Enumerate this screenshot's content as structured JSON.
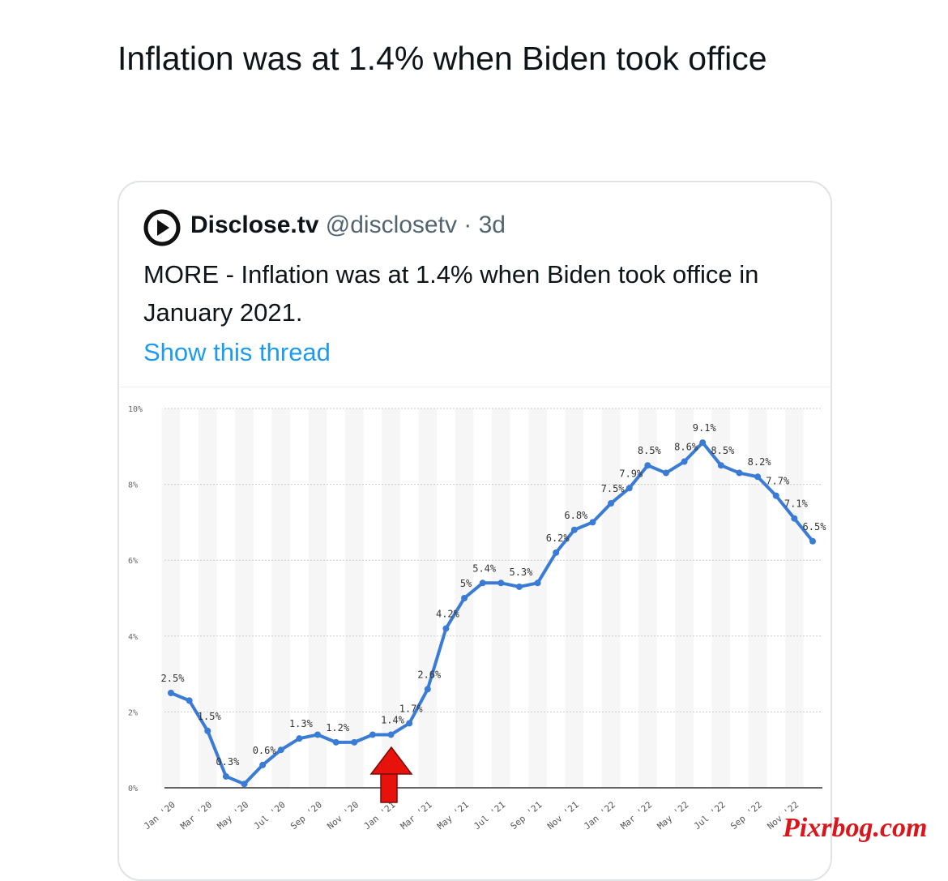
{
  "tweet": {
    "text": "Inflation was at 1.4% when Biden took office"
  },
  "quoted": {
    "name": "Disclose.tv",
    "handle": "@disclosetv",
    "time": "· 3d",
    "text": "MORE - Inflation was at 1.4% when Biden took office in January 2021.",
    "thread_link": "Show this thread"
  },
  "chart_data": {
    "type": "line",
    "categories": [
      "Jan '20",
      null,
      "Mar '20",
      null,
      "May '20",
      null,
      "Jul '20",
      null,
      "Sep '20",
      null,
      "Nov '20",
      null,
      "Jan '21",
      null,
      "Mar '21",
      null,
      "May '21",
      null,
      "Jul '21",
      null,
      "Sep '21",
      null,
      "Nov '21",
      null,
      "Jan '22",
      null,
      "Mar '22",
      null,
      "May '22",
      null,
      "Jul '22",
      null,
      "Sep '22",
      null,
      "Nov '22",
      null
    ],
    "values": [
      2.5,
      2.3,
      1.5,
      0.3,
      0.1,
      0.6,
      1.0,
      1.3,
      1.4,
      1.2,
      1.2,
      1.4,
      1.4,
      1.7,
      2.6,
      4.2,
      5,
      5.4,
      5.4,
      5.3,
      5.4,
      6.2,
      6.8,
      7.0,
      7.5,
      7.9,
      8.5,
      8.3,
      8.6,
      9.1,
      8.5,
      8.3,
      8.2,
      7.7,
      7.1,
      6.5
    ],
    "value_labels": [
      "2.5%",
      null,
      "1.5%",
      "0.3%",
      null,
      "0.6%",
      null,
      "1.3%",
      null,
      "1.2%",
      null,
      null,
      "1.4%",
      "1.7%",
      "2.6%",
      "4.2%",
      "5%",
      "5.4%",
      null,
      "5.3%",
      null,
      "6.2%",
      "6.8%",
      null,
      "7.5%",
      "7.9%",
      "8.5%",
      null,
      "8.6%",
      "9.1%",
      "8.5%",
      null,
      "8.2%",
      "7.7%",
      "7.1%",
      "6.5%"
    ],
    "color": "#3a7bd5",
    "ylim": [
      0,
      10
    ],
    "yticks": [
      {
        "value": 0,
        "label": "0%"
      },
      {
        "value": 2,
        "label": "2%"
      },
      {
        "value": 4,
        "label": "4%"
      },
      {
        "value": 6,
        "label": "6%"
      },
      {
        "value": 8,
        "label": "8%"
      },
      {
        "value": 10,
        "label": "10%"
      }
    ],
    "grid": true
  },
  "watermark": "Pixrbog.com"
}
